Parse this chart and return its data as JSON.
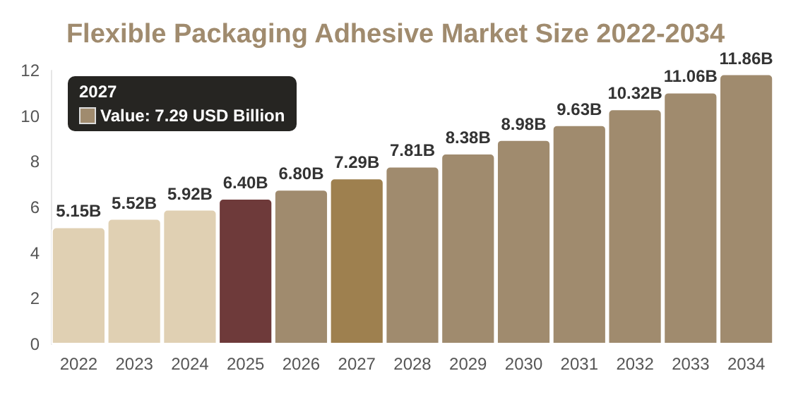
{
  "chart_data": {
    "type": "bar",
    "title": "Flexible Packaging Adhesive Market Size 2022-2034",
    "categories": [
      "2022",
      "2023",
      "2024",
      "2025",
      "2026",
      "2027",
      "2028",
      "2029",
      "2030",
      "2031",
      "2032",
      "2033",
      "2034"
    ],
    "values": [
      5.15,
      5.52,
      5.92,
      6.4,
      6.8,
      7.29,
      7.81,
      8.38,
      8.98,
      9.63,
      10.32,
      11.06,
      11.86
    ],
    "value_labels": [
      "5.15B",
      "5.52B",
      "5.92B",
      "6.40B",
      "6.80B",
      "7.29B",
      "7.81B",
      "8.38B",
      "8.98B",
      "9.63B",
      "10.32B",
      "11.06B",
      "11.86B"
    ],
    "colors": [
      "#e0d0b3",
      "#e0d0b3",
      "#e0d0b3",
      "#6e3a3a",
      "#a08b6e",
      "#9e804f",
      "#a08b6e",
      "#a08b6e",
      "#a08b6e",
      "#a08b6e",
      "#a08b6e",
      "#a08b6e",
      "#a08b6e"
    ],
    "ylim": [
      0,
      12
    ],
    "yticks": [
      0,
      2,
      4,
      6,
      8,
      10,
      12
    ],
    "grid": false,
    "annotations": [
      "2027",
      "Value: 7.29 USD Billion"
    ]
  }
}
